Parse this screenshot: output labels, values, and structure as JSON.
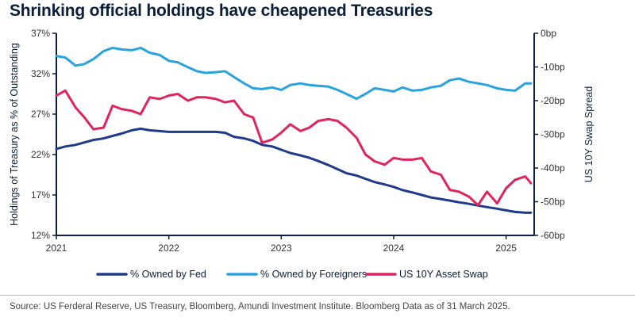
{
  "title": "Shrinking official holdings have cheapened Treasuries",
  "source": "Source: US Ferderal Reserve, US Treasury, Bloomberg, Amundi Investment Institute. Bloomberg Data as of 31 March 2025.",
  "colors": {
    "fed": "#1f3a8a",
    "foreigners": "#29a3dd",
    "swap": "#e0245e",
    "axis": "#0a1f3d"
  },
  "chart_data": {
    "type": "line",
    "title": "Shrinking official holdings have cheapened Treasuries",
    "xlabel": "",
    "ylabel": "Holdings of Treasury as  % of Outstanding",
    "y2label": "US 10Y Swap Spread",
    "xlim": [
      2021.0,
      2025.25
    ],
    "ylim": [
      12,
      37
    ],
    "y2lim": [
      -60,
      0
    ],
    "x_ticks": [
      2021,
      2022,
      2023,
      2024,
      2025
    ],
    "x_tick_labels": [
      "2021",
      "2022",
      "2023",
      "2024",
      "2025"
    ],
    "y_ticks": [
      12,
      17,
      22,
      27,
      32,
      37
    ],
    "y_tick_labels": [
      "12%",
      "17%",
      "22%",
      "27%",
      "32%",
      "37%"
    ],
    "y2_ticks": [
      0,
      -10,
      -20,
      -30,
      -40,
      -50,
      -60
    ],
    "y2_tick_labels": [
      "0bp",
      "-10bp",
      "-20bp",
      "-30bp",
      "-40bp",
      "-50bp",
      "-60bp"
    ],
    "series": [
      {
        "name": "% Owned by Fed",
        "axis": "left",
        "x": [
          2021.0,
          2021.08,
          2021.17,
          2021.25,
          2021.33,
          2021.42,
          2021.5,
          2021.58,
          2021.67,
          2021.75,
          2021.83,
          2021.92,
          2022.0,
          2022.08,
          2022.17,
          2022.25,
          2022.33,
          2022.42,
          2022.5,
          2022.58,
          2022.67,
          2022.75,
          2022.83,
          2022.92,
          2023.0,
          2023.08,
          2023.17,
          2023.25,
          2023.33,
          2023.42,
          2023.5,
          2023.58,
          2023.67,
          2023.75,
          2023.83,
          2023.92,
          2024.0,
          2024.08,
          2024.17,
          2024.25,
          2024.33,
          2024.42,
          2024.5,
          2024.58,
          2024.67,
          2024.75,
          2024.83,
          2024.92,
          2025.0,
          2025.08,
          2025.17,
          2025.22
        ],
        "values": [
          22.7,
          23.0,
          23.2,
          23.5,
          23.8,
          24.0,
          24.3,
          24.6,
          25.0,
          25.2,
          25.0,
          24.9,
          24.8,
          24.8,
          24.8,
          24.8,
          24.8,
          24.8,
          24.7,
          24.2,
          24.0,
          23.7,
          23.2,
          23.0,
          22.6,
          22.2,
          21.9,
          21.6,
          21.2,
          20.7,
          20.2,
          19.7,
          19.4,
          19.0,
          18.6,
          18.3,
          18.0,
          17.6,
          17.3,
          17.0,
          16.7,
          16.5,
          16.3,
          16.1,
          15.9,
          15.7,
          15.5,
          15.3,
          15.1,
          14.9,
          14.8,
          14.8
        ]
      },
      {
        "name": "% Owned by Foreigners",
        "axis": "left",
        "x": [
          2021.0,
          2021.08,
          2021.17,
          2021.25,
          2021.33,
          2021.42,
          2021.5,
          2021.58,
          2021.67,
          2021.75,
          2021.83,
          2021.92,
          2022.0,
          2022.08,
          2022.17,
          2022.25,
          2022.33,
          2022.42,
          2022.5,
          2022.58,
          2022.67,
          2022.75,
          2022.83,
          2022.92,
          2023.0,
          2023.08,
          2023.17,
          2023.25,
          2023.33,
          2023.42,
          2023.5,
          2023.58,
          2023.67,
          2023.75,
          2023.83,
          2023.92,
          2024.0,
          2024.08,
          2024.17,
          2024.25,
          2024.33,
          2024.42,
          2024.5,
          2024.58,
          2024.67,
          2024.75,
          2024.83,
          2024.92,
          2025.0,
          2025.08,
          2025.17,
          2025.22
        ],
        "values": [
          34.2,
          34.0,
          33.0,
          33.2,
          33.8,
          34.8,
          35.2,
          35.0,
          34.9,
          35.2,
          34.6,
          34.3,
          33.6,
          33.4,
          32.8,
          32.3,
          32.1,
          32.2,
          32.3,
          31.6,
          30.8,
          30.2,
          30.1,
          30.3,
          30.0,
          30.6,
          30.8,
          30.6,
          30.5,
          30.4,
          30.0,
          29.5,
          28.9,
          29.5,
          30.2,
          30.0,
          29.8,
          30.3,
          29.9,
          30.0,
          30.3,
          30.5,
          31.2,
          31.4,
          31.0,
          30.8,
          30.6,
          30.2,
          30.0,
          29.9,
          30.8,
          30.8
        ]
      },
      {
        "name": "US 10Y Asset Swap",
        "axis": "right",
        "x": [
          2021.0,
          2021.08,
          2021.17,
          2021.25,
          2021.33,
          2021.42,
          2021.5,
          2021.58,
          2021.67,
          2021.75,
          2021.83,
          2021.92,
          2022.0,
          2022.08,
          2022.17,
          2022.25,
          2022.33,
          2022.42,
          2022.5,
          2022.58,
          2022.67,
          2022.75,
          2022.83,
          2022.92,
          2023.0,
          2023.08,
          2023.17,
          2023.25,
          2023.33,
          2023.42,
          2023.5,
          2023.58,
          2023.67,
          2023.75,
          2023.83,
          2023.92,
          2024.0,
          2024.08,
          2024.17,
          2024.25,
          2024.33,
          2024.42,
          2024.5,
          2024.58,
          2024.67,
          2024.75,
          2024.83,
          2024.92,
          2025.0,
          2025.08,
          2025.17,
          2025.22
        ],
        "values": [
          -18.5,
          -17.0,
          -22.0,
          -25.0,
          -28.5,
          -28.0,
          -21.5,
          -22.5,
          -23.0,
          -24.0,
          -19.0,
          -19.5,
          -18.5,
          -18.0,
          -20.0,
          -19.0,
          -19.0,
          -19.5,
          -20.5,
          -20.0,
          -24.0,
          -25.0,
          -32.5,
          -31.5,
          -29.5,
          -27.0,
          -29.0,
          -28.0,
          -26.0,
          -25.5,
          -26.0,
          -28.0,
          -31.0,
          -36.0,
          -38.0,
          -39.0,
          -37.0,
          -37.5,
          -37.5,
          -37.0,
          -41.0,
          -42.0,
          -46.5,
          -47.0,
          -48.5,
          -51.0,
          -47.0,
          -50.5,
          -46.0,
          -43.5,
          -42.5,
          -44.5
        ]
      }
    ],
    "legend": {
      "position": "bottom",
      "entries": [
        "% Owned by Fed",
        "% Owned by Foreigners",
        "US 10Y Asset Swap"
      ]
    }
  }
}
